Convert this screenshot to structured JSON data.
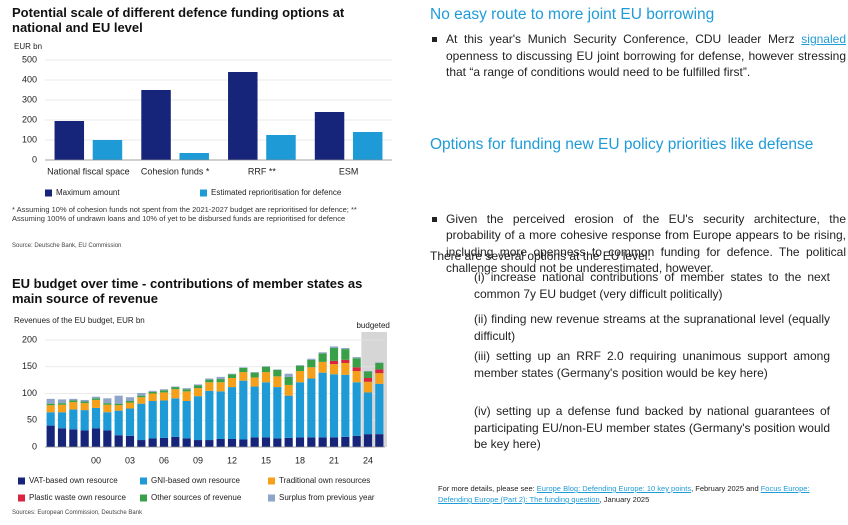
{
  "chart_data": [
    {
      "type": "bar",
      "title": "Potential scale of different defence funding options at national and EU level",
      "y_label": "EUR bn",
      "categories": [
        "National fiscal space",
        "Cohesion funds *",
        "RRF **",
        "ESM"
      ],
      "series": [
        {
          "name": "Maximum amount",
          "color": "#16247a",
          "values": [
            195,
            350,
            440,
            240
          ]
        },
        {
          "name": "Estimated reprioritisation for defence",
          "color": "#1e9bd7",
          "values": [
            100,
            35,
            125,
            140
          ]
        }
      ],
      "ylim": [
        0,
        500
      ],
      "yticks": [
        0,
        100,
        200,
        300,
        400,
        500
      ],
      "grid": true,
      "footnote": "* Assuming 10% of cohesion funds not spent from the 2021-2027 budget are reprioritised for defence; ** Assuming 100% of undrawn loans and 10% of yet to be disbursed funds are reprioritised for defence",
      "source": "Source: Deutsche Bank, EU Commission"
    },
    {
      "type": "bar",
      "stacked": true,
      "title": "EU budget over time - contributions of member states as main source of revenue",
      "subtitle": "Revenues of the EU budget, EUR bn",
      "annotation": "budgeted",
      "categories": [
        null,
        null,
        null,
        null,
        "00",
        null,
        null,
        "03",
        null,
        null,
        "06",
        null,
        null,
        "09",
        null,
        null,
        "12",
        null,
        null,
        "15",
        null,
        null,
        "18",
        null,
        null,
        "21",
        null,
        null,
        "24",
        null
      ],
      "series": [
        {
          "name": "VAT-based own resource",
          "color": "#16247a",
          "values": [
            40,
            35,
            33,
            31,
            35,
            31,
            22,
            21,
            13,
            16,
            17,
            19,
            16,
            13,
            13,
            15,
            15,
            14,
            18,
            18,
            16,
            17,
            18,
            18,
            18,
            18,
            19,
            21,
            24,
            24
          ]
        },
        {
          "name": "GNI-based own resource",
          "color": "#1e9ad6",
          "values": [
            25,
            30,
            37,
            38,
            38,
            34,
            46,
            51,
            68,
            70,
            70,
            72,
            70,
            82,
            92,
            89,
            97,
            110,
            95,
            103,
            96,
            79,
            103,
            110,
            121,
            118,
            116,
            100,
            78,
            94
          ]
        },
        {
          "name": "Traditional own resources",
          "color": "#f5a01a",
          "values": [
            13,
            14,
            14,
            13,
            15,
            14,
            10,
            11,
            12,
            14,
            15,
            17,
            18,
            15,
            16,
            17,
            17,
            16,
            17,
            19,
            20,
            20,
            21,
            21,
            20,
            19,
            22,
            21,
            20,
            20
          ]
        },
        {
          "name": "Plastic waste own resource",
          "color": "#d7263d",
          "values": [
            null,
            null,
            null,
            null,
            null,
            null,
            null,
            null,
            null,
            null,
            null,
            null,
            null,
            null,
            null,
            null,
            null,
            null,
            null,
            null,
            null,
            null,
            null,
            null,
            null,
            6,
            6,
            7,
            7,
            7
          ]
        },
        {
          "name": "Other sources of revenue",
          "color": "#3aa047",
          "values": [
            3,
            3,
            3,
            3,
            3,
            3,
            3,
            3,
            3,
            3,
            4,
            4,
            4,
            5,
            5,
            6,
            7,
            8,
            9,
            10,
            12,
            15,
            10,
            14,
            16,
            24,
            20,
            17,
            12,
            12
          ]
        },
        {
          "name": "Surplus from previous year",
          "color": "#8ea4c8",
          "values": [
            9,
            7,
            3,
            3,
            3,
            9,
            15,
            7,
            5,
            2,
            2,
            1,
            2,
            2,
            2,
            4,
            1,
            1,
            1,
            1,
            1,
            6,
            1,
            2,
            2,
            3,
            2,
            2,
            1,
            1
          ]
        }
      ],
      "ylim": [
        0,
        200
      ],
      "yticks": [
        0,
        50,
        100,
        150,
        200
      ],
      "grid": true,
      "source": "Sources: European Commission, Deutsche Bank"
    }
  ],
  "text": {
    "heading1": "No easy route to more joint EU borrowing",
    "bullet1": [
      "At this year's Munich Security Conference, CDU leader Merz ",
      "signaled",
      " openness to discussing EU joint borrowing for defense, however stressing that “a range of conditions would need to be fulfilled first”."
    ],
    "heading2": "Options for funding new EU policy priorities like defense",
    "bullet2": "Given the perceived erosion of the EU's security architecture, the probability of a more cohesive response from Europe appears to be rising, including more openness to common funding for defence. The political challenge should not be underestimated, however.",
    "intro": "There are several options at the EU level:",
    "options": [
      "(i) increase national contributions of member states to the next common 7y EU budget (very difficult politically)",
      "(ii) finding new revenue streams at the supranational level (equally difficult)",
      "(iii) setting up an RRF 2.0 requiring unanimous support among member states (Germany's position would be key here)",
      "(iv) setting up a defense fund backed by national guarantees of participating EU/non-EU member states (Germany's position would be key here)"
    ],
    "footnote": [
      "For more details, please see: ",
      "Europe Blog: Defending Europe: 10 key points",
      ", February 2025 and ",
      "Focus Europe: Defending Europe (Part 2): The funding question",
      ", January 2025"
    ]
  }
}
